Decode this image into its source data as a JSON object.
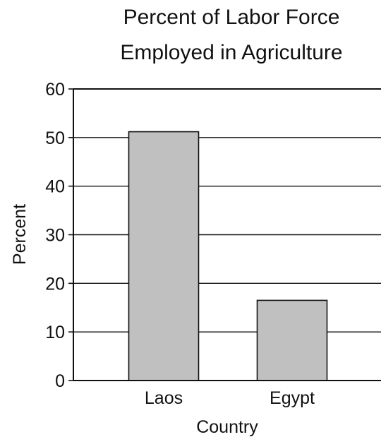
{
  "chart_data": {
    "type": "bar",
    "title_lines": [
      "Percent of Labor Force",
      "Employed in Agriculture"
    ],
    "xlabel": "Country",
    "ylabel": "Percent",
    "categories": [
      "Laos",
      "Egypt"
    ],
    "values": [
      51.2,
      16.5
    ],
    "ylim": [
      0,
      60
    ],
    "yticks": [
      "0",
      "10",
      "20",
      "30",
      "40",
      "50",
      "60"
    ],
    "grid": "horizontal",
    "bar_color": "#c0c0c0",
    "bar_edge_color": "#111111"
  }
}
